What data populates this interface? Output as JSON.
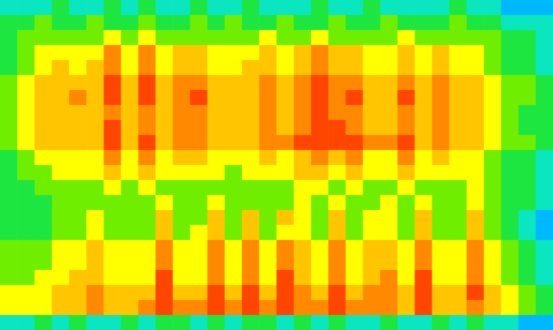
{
  "chart_data": {
    "type": "heatmap",
    "tick_labels": false,
    "zlim": [
      0,
      10
    ],
    "cells": [
      [
        3,
        3,
        3,
        4,
        3,
        3,
        4,
        3,
        4,
        3,
        3,
        4,
        3,
        3,
        4,
        3,
        3,
        3,
        4,
        3,
        3,
        4,
        3,
        3,
        3,
        3,
        4,
        3,
        3,
        2,
        2,
        2
      ],
      [
        4,
        4,
        5,
        4,
        4,
        5,
        4,
        4,
        5,
        4,
        4,
        5,
        4,
        5,
        4,
        4,
        5,
        4,
        4,
        5,
        4,
        4,
        5,
        4,
        4,
        4,
        5,
        4,
        4,
        3,
        3,
        3
      ],
      [
        4,
        5,
        5,
        5,
        5,
        5,
        6,
        5,
        6,
        5,
        5,
        5,
        5,
        5,
        5,
        6,
        5,
        5,
        6,
        5,
        5,
        5,
        5,
        6,
        5,
        5,
        5,
        5,
        5,
        4,
        4,
        3
      ],
      [
        4,
        5,
        6,
        6,
        6,
        6,
        8,
        6,
        8,
        6,
        7,
        7,
        6,
        6,
        6,
        7,
        6,
        7,
        8,
        7,
        7,
        6,
        6,
        7,
        6,
        7,
        6,
        6,
        5,
        4,
        4,
        3
      ],
      [
        4,
        5,
        6,
        7,
        6,
        7,
        8,
        6,
        8,
        6,
        7,
        7,
        6,
        6,
        7,
        7,
        6,
        7,
        8,
        7,
        7,
        6,
        6,
        7,
        6,
        7,
        6,
        6,
        5,
        4,
        4,
        3
      ],
      [
        5,
        6,
        7,
        7,
        7,
        7,
        9,
        7,
        9,
        7,
        8,
        8,
        7,
        7,
        7,
        8,
        7,
        8,
        9,
        8,
        8,
        7,
        7,
        8,
        7,
        8,
        7,
        7,
        6,
        5,
        5,
        4
      ],
      [
        5,
        6,
        7,
        7,
        8,
        7,
        9,
        7,
        9,
        7,
        8,
        9,
        7,
        7,
        7,
        8,
        7,
        8,
        9,
        8,
        9,
        7,
        7,
        9,
        7,
        8,
        7,
        7,
        6,
        5,
        5,
        4
      ],
      [
        5,
        6,
        7,
        7,
        7,
        7,
        8,
        7,
        8,
        7,
        8,
        8,
        7,
        7,
        7,
        8,
        7,
        8,
        9,
        8,
        8,
        7,
        7,
        8,
        7,
        8,
        7,
        7,
        6,
        5,
        4,
        4
      ],
      [
        5,
        6,
        7,
        7,
        7,
        7,
        9,
        7,
        8,
        7,
        8,
        8,
        7,
        7,
        7,
        8,
        7,
        8,
        9,
        9,
        8,
        7,
        7,
        8,
        7,
        8,
        7,
        7,
        6,
        5,
        4,
        4
      ],
      [
        5,
        6,
        7,
        7,
        7,
        7,
        9,
        7,
        9,
        7,
        8,
        8,
        7,
        7,
        7,
        8,
        8,
        9,
        9,
        9,
        9,
        8,
        8,
        9,
        7,
        8,
        7,
        7,
        6,
        5,
        5,
        4
      ],
      [
        4,
        5,
        6,
        6,
        6,
        6,
        8,
        6,
        8,
        6,
        7,
        7,
        6,
        6,
        6,
        7,
        6,
        7,
        8,
        7,
        8,
        6,
        6,
        8,
        6,
        7,
        6,
        6,
        5,
        4,
        4,
        3
      ],
      [
        4,
        5,
        5,
        6,
        6,
        6,
        7,
        6,
        7,
        6,
        6,
        6,
        6,
        5,
        6,
        6,
        6,
        7,
        7,
        6,
        7,
        6,
        6,
        7,
        6,
        6,
        6,
        6,
        5,
        4,
        4,
        3
      ],
      [
        4,
        4,
        5,
        5,
        5,
        5,
        6,
        5,
        6,
        5,
        5,
        5,
        5,
        5,
        5,
        5,
        5,
        6,
        6,
        5,
        6,
        5,
        5,
        6,
        5,
        5,
        5,
        6,
        5,
        4,
        4,
        3
      ],
      [
        4,
        4,
        4,
        5,
        5,
        5,
        5,
        5,
        5,
        6,
        5,
        5,
        6,
        5,
        5,
        5,
        5,
        6,
        5,
        6,
        5,
        5,
        6,
        5,
        6,
        5,
        5,
        6,
        5,
        4,
        4,
        3
      ],
      [
        4,
        4,
        4,
        5,
        5,
        6,
        5,
        5,
        5,
        7,
        5,
        5,
        7,
        5,
        7,
        5,
        7,
        6,
        5,
        7,
        5,
        6,
        6,
        5,
        7,
        5,
        5,
        7,
        5,
        4,
        3,
        2
      ],
      [
        4,
        4,
        4,
        5,
        5,
        6,
        5,
        5,
        5,
        7,
        5,
        6,
        7,
        5,
        7,
        5,
        6,
        6,
        5,
        7,
        5,
        6,
        6,
        5,
        7,
        5,
        5,
        7,
        5,
        4,
        3,
        2
      ],
      [
        5,
        5,
        5,
        6,
        6,
        7,
        6,
        6,
        6,
        8,
        6,
        6,
        8,
        6,
        8,
        6,
        8,
        7,
        6,
        8,
        6,
        7,
        7,
        6,
        8,
        6,
        6,
        8,
        6,
        5,
        4,
        3
      ],
      [
        5,
        5,
        5,
        6,
        6,
        7,
        6,
        6,
        6,
        8,
        6,
        6,
        8,
        6,
        8,
        6,
        8,
        7,
        6,
        8,
        6,
        7,
        7,
        6,
        8,
        6,
        6,
        8,
        6,
        5,
        4,
        3
      ],
      [
        5,
        5,
        6,
        6,
        7,
        7,
        6,
        6,
        6,
        9,
        6,
        6,
        8,
        6,
        8,
        6,
        9,
        7,
        6,
        8,
        6,
        7,
        8,
        6,
        9,
        6,
        6,
        8,
        6,
        5,
        4,
        3
      ],
      [
        6,
        6,
        6,
        7,
        7,
        8,
        7,
        7,
        7,
        9,
        7,
        7,
        9,
        7,
        9,
        7,
        9,
        8,
        7,
        9,
        7,
        8,
        8,
        7,
        9,
        7,
        7,
        9,
        7,
        6,
        5,
        4
      ],
      [
        6,
        6,
        6,
        7,
        7,
        8,
        7,
        7,
        8,
        9,
        8,
        8,
        9,
        8,
        9,
        8,
        9,
        8,
        8,
        9,
        8,
        8,
        8,
        7,
        9,
        7,
        7,
        8,
        7,
        6,
        5,
        4
      ],
      [
        3,
        3,
        4,
        3,
        4,
        3,
        3,
        4,
        3,
        4,
        4,
        3,
        4,
        3,
        4,
        4,
        3,
        4,
        3,
        4,
        3,
        3,
        4,
        3,
        3,
        4,
        3,
        4,
        3,
        3,
        2,
        2
      ]
    ]
  }
}
